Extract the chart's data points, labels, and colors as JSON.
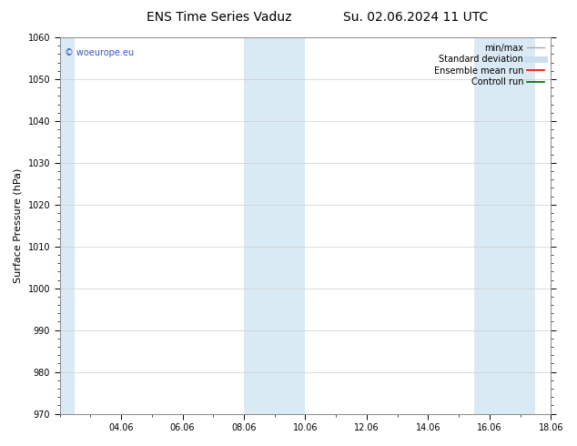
{
  "title_left": "ENS Time Series Vaduz",
  "title_right": "Su. 02.06.2024 11 UTC",
  "ylabel": "Surface Pressure (hPa)",
  "ylim": [
    970,
    1060
  ],
  "yticks": [
    970,
    980,
    990,
    1000,
    1010,
    1020,
    1030,
    1040,
    1050,
    1060
  ],
  "x_min": 0,
  "x_max": 16,
  "xtick_labels": [
    "04.06",
    "06.06",
    "08.06",
    "10.06",
    "12.06",
    "14.06",
    "16.06",
    "18.06"
  ],
  "xtick_positions": [
    2,
    4,
    6,
    8,
    10,
    12,
    14,
    16
  ],
  "shaded_bands": [
    {
      "x_start": 0,
      "x_end": 0.5,
      "color": "#daeaf5"
    },
    {
      "x_start": 6,
      "x_end": 8,
      "color": "#daeaf5"
    },
    {
      "x_start": 13.5,
      "x_end": 15.5,
      "color": "#daeaf5"
    }
  ],
  "watermark_text": "© woeurope.eu",
  "watermark_color": "#3355bb",
  "legend_items": [
    {
      "label": "min/max",
      "color": "#aaaaaa",
      "lw": 1.0,
      "style": "solid"
    },
    {
      "label": "Standard deviation",
      "color": "#ccdded",
      "lw": 5,
      "style": "solid"
    },
    {
      "label": "Ensemble mean run",
      "color": "#ff0000",
      "lw": 1.2,
      "style": "solid"
    },
    {
      "label": "Controll run",
      "color": "#006600",
      "lw": 1.2,
      "style": "solid"
    }
  ],
  "background_color": "#ffffff",
  "plot_bg_color": "#ffffff",
  "grid_color": "#cccccc",
  "title_fontsize": 10,
  "ylabel_fontsize": 8,
  "tick_fontsize": 7,
  "watermark_fontsize": 7,
  "legend_fontsize": 7
}
